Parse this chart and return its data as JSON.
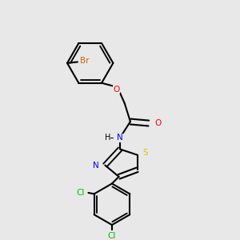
{
  "background_color": "#e8e8e8",
  "bond_color": "#000000",
  "colors": {
    "Br": "#cc6600",
    "O": "#ff0000",
    "N": "#0000ff",
    "S": "#cccc00",
    "Cl": "#00bb00",
    "C": "#000000",
    "H": "#000000"
  },
  "lw": 1.5,
  "lw2": 1.2
}
